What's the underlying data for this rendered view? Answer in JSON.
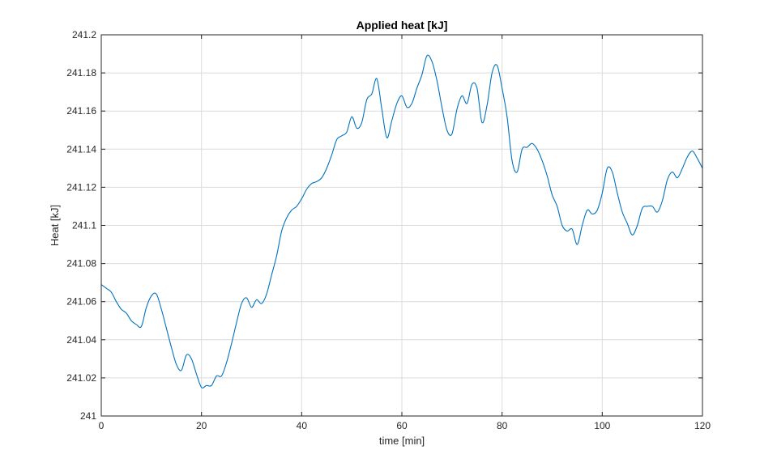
{
  "chart_data": {
    "type": "line",
    "title": "Applied heat [kJ]",
    "xlabel": "time [min]",
    "ylabel": "Heat [kJ]",
    "xlim": [
      0,
      120
    ],
    "ylim": [
      241,
      241.2
    ],
    "xticks": [
      0,
      20,
      40,
      60,
      80,
      100,
      120
    ],
    "xtick_labels": [
      "0",
      "20",
      "40",
      "60",
      "80",
      "100",
      "120"
    ],
    "yticks": [
      241,
      241.02,
      241.04,
      241.06,
      241.08,
      241.1,
      241.12,
      241.14,
      241.16,
      241.18,
      241.2
    ],
    "ytick_labels": [
      "241",
      "241.02",
      "241.04",
      "241.06",
      "241.08",
      "241.1",
      "241.12",
      "241.14",
      "241.16",
      "241.18",
      "241.2"
    ],
    "grid": true,
    "line_color": "#0072bd",
    "series": [
      {
        "x": [
          0,
          1,
          2,
          3,
          4,
          5,
          6,
          7,
          8,
          9,
          10,
          11,
          12,
          13,
          14,
          15,
          16,
          17,
          18,
          19,
          20,
          21,
          22,
          23,
          24,
          25,
          26,
          27,
          28,
          29,
          30,
          31,
          32,
          33,
          34,
          35,
          36,
          37,
          38,
          39,
          40,
          41,
          42,
          43,
          44,
          45,
          46,
          47,
          48,
          49,
          50,
          51,
          52,
          53,
          54,
          55,
          56,
          57,
          58,
          59,
          60,
          61,
          62,
          63,
          64,
          65,
          66,
          67,
          68,
          69,
          70,
          71,
          72,
          73,
          74,
          75,
          76,
          77,
          78,
          79,
          80,
          81,
          82,
          83,
          84,
          85,
          86,
          87,
          88,
          89,
          90,
          91,
          92,
          93,
          94,
          95,
          96,
          97,
          98,
          99,
          100,
          101,
          102,
          103,
          104,
          105,
          106,
          107,
          108,
          109,
          110,
          111,
          112,
          113,
          114,
          115,
          116,
          117,
          118,
          119,
          120
        ],
        "y": [
          241.069,
          241.067,
          241.065,
          241.06,
          241.056,
          241.054,
          241.05,
          241.048,
          241.047,
          241.057,
          241.063,
          241.064,
          241.056,
          241.046,
          241.036,
          241.027,
          241.024,
          241.032,
          241.03,
          241.022,
          241.015,
          241.016,
          241.016,
          241.021,
          241.021,
          241.028,
          241.038,
          241.049,
          241.059,
          241.062,
          241.057,
          241.061,
          241.059,
          241.064,
          241.074,
          241.084,
          241.097,
          241.104,
          241.108,
          241.11,
          241.114,
          241.119,
          241.122,
          241.123,
          241.125,
          241.13,
          241.137,
          241.145,
          241.147,
          241.149,
          241.157,
          241.151,
          241.154,
          241.166,
          241.169,
          241.177,
          241.161,
          241.146,
          241.155,
          241.164,
          241.168,
          241.162,
          241.164,
          241.172,
          241.179,
          241.189,
          241.186,
          241.176,
          241.162,
          241.15,
          241.148,
          241.161,
          241.168,
          241.164,
          241.174,
          241.172,
          241.154,
          241.163,
          241.18,
          241.184,
          241.172,
          241.157,
          241.134,
          241.128,
          241.14,
          241.141,
          241.143,
          241.14,
          241.134,
          241.126,
          241.116,
          241.11,
          241.1,
          241.097,
          241.098,
          241.09,
          241.1,
          241.108,
          241.106,
          241.108,
          241.117,
          241.13,
          241.128,
          241.117,
          241.107,
          241.101,
          241.095,
          241.1,
          241.109,
          241.11,
          241.11,
          241.107,
          241.113,
          241.124,
          241.128,
          241.125,
          241.13,
          241.136,
          241.139,
          241.135,
          241.13
        ]
      }
    ]
  }
}
